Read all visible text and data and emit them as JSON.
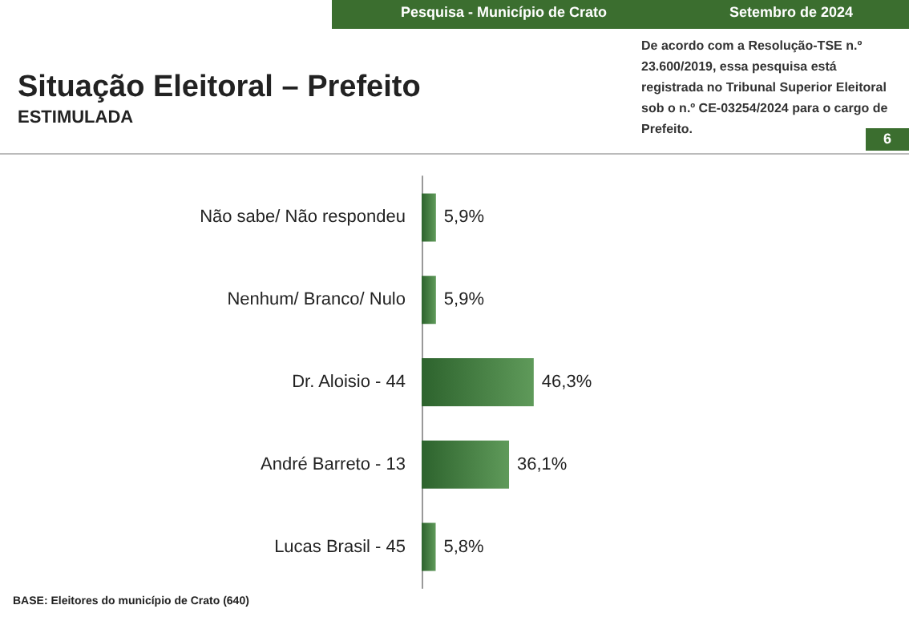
{
  "chart_data": {
    "type": "bar",
    "orientation": "horizontal",
    "title": "Situação Eleitoral – Prefeito",
    "subtitle": "ESTIMULADA",
    "categories": [
      "Não sabe/ Não respondeu",
      "Nenhum/ Branco/ Nulo",
      "Dr. Aloisio - 44",
      "André Barreto - 13",
      "Lucas Brasil - 45"
    ],
    "values": [
      5.9,
      5.9,
      46.3,
      36.1,
      5.8
    ],
    "value_labels": [
      "5,9%",
      "5,9%",
      "46,3%",
      "36,1%",
      "5,8%"
    ],
    "color": "#2d632d",
    "xlim": [
      0,
      200
    ],
    "tick_labels": "y",
    "grid": false,
    "annotations": [
      "Pesquisa - Município de Crato",
      "Setembro de 2024",
      "De acordo com a Resolução-TSE n.º 23.600/2019, essa pesquisa está registrada no Tribunal Superior Eleitoral sob o n.º CE-03254/2024 para o cargo de Prefeito.",
      "6",
      "BASE: Eleitores do município de Crato (640)"
    ]
  }
}
